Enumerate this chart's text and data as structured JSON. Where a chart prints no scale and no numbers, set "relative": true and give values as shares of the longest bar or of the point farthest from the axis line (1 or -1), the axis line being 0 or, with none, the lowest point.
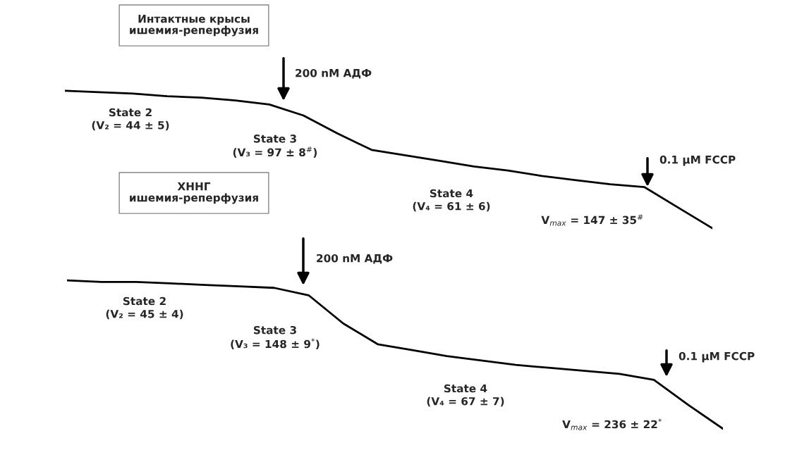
{
  "chart_data": [
    {
      "type": "line",
      "title": "Интактные крысы\nишемия-реперфузия",
      "relative": true,
      "categories": [
        null,
        null,
        null,
        null,
        null,
        null,
        null,
        null,
        null,
        null,
        null,
        null,
        null,
        null,
        null,
        null,
        null,
        null,
        null,
        null
      ],
      "series": [
        {
          "color": "#000000",
          "values": [
            1.0,
            0.99,
            0.98,
            0.96,
            0.95,
            0.93,
            0.9,
            0.82,
            0.69,
            0.57,
            0.53,
            0.49,
            0.45,
            0.42,
            0.38,
            0.35,
            0.32,
            0.3,
            0.15,
            0.0
          ]
        }
      ],
      "annotations": [
        "200 nM АДФ",
        "State 2\n(V₂ = 44 ± 5)",
        "State 3\n(V₃ = 97 ± 8$^{#}$)",
        "State 4\n(V₄ = 61 ± 6)",
        "0.1 μM FCCP",
        "V$_{max}$ = 147 ± 35$^{#}$"
      ]
    },
    {
      "type": "line",
      "title": "ХННГ\nишемия-реперфузия",
      "relative": true,
      "categories": [
        null,
        null,
        null,
        null,
        null,
        null,
        null,
        null,
        null,
        null,
        null,
        null,
        null,
        null,
        null,
        null,
        null,
        null,
        null,
        null
      ],
      "series": [
        {
          "color": "#000000",
          "values": [
            1.0,
            0.99,
            0.99,
            0.98,
            0.97,
            0.96,
            0.95,
            0.9,
            0.71,
            0.57,
            0.53,
            0.49,
            0.46,
            0.43,
            0.41,
            0.39,
            0.37,
            0.33,
            0.16,
            0.0
          ]
        }
      ],
      "annotations": [
        "200 nM АДФ",
        "State 2\n(V₂ = 45 ± 4)",
        "State 3\n(V₃ = 148 ± 9$^{*}$)",
        "State 4\n(V₄ = 67 ± 7)",
        "0.1 μM FCCP",
        "V$_{max}$ = 236 ± 22$^{*}$"
      ]
    }
  ]
}
